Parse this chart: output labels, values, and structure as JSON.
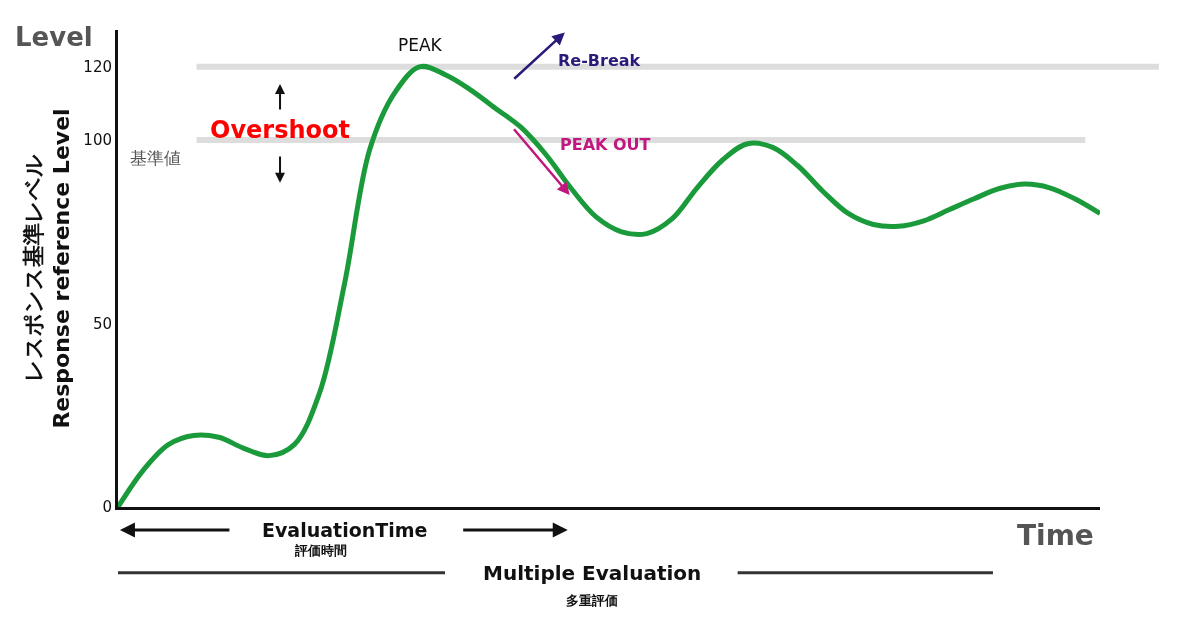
{
  "chart_data": {
    "type": "line",
    "xlabel": "Time",
    "ylabel": "レスポンス基準レベル\nResponse reference Level",
    "categories": [
      null,
      null,
      null,
      null,
      null,
      null,
      null,
      null,
      null,
      null,
      null,
      null,
      null,
      null,
      null,
      null,
      null,
      null,
      null,
      null,
      null,
      null,
      null,
      null,
      null,
      null,
      null,
      null,
      null,
      null,
      null,
      null,
      null,
      null,
      null,
      null,
      null,
      null,
      null,
      null
    ],
    "series": [
      {
        "color": "#1a9a3a",
        "values": [
          0,
          10,
          17,
          19.5,
          19,
          16,
          14,
          17,
          31,
          61,
          97.5,
          113,
          120,
          117.8,
          113.7,
          108.6,
          103.5,
          96,
          86.8,
          79,
          75,
          74.5,
          78.5,
          87,
          94.5,
          99,
          98,
          93,
          86,
          80,
          77,
          76.5,
          78,
          81,
          84,
          86.8,
          88,
          87,
          84,
          80
        ]
      }
    ],
    "ylim": [
      0,
      130
    ],
    "yticks": [
      0,
      50,
      100,
      120
    ],
    "ref_lines": [
      {
        "axis": "y",
        "value": 100,
        "label": "基準値",
        "color": "#dddddd"
      },
      {
        "axis": "y",
        "value": 120,
        "color": "#dddddd"
      }
    ],
    "annotations": [
      "Level",
      {
        "text": "PEAK",
        "y": 120
      },
      "Overshoot",
      "Re-Break",
      "PEAK OUT",
      "EvaluationTime",
      "評価時間",
      "Multiple Evaluation",
      "多重評価"
    ],
    "grid": false,
    "marker": "none",
    "line_style": "solid",
    "tick_labels": "y"
  }
}
